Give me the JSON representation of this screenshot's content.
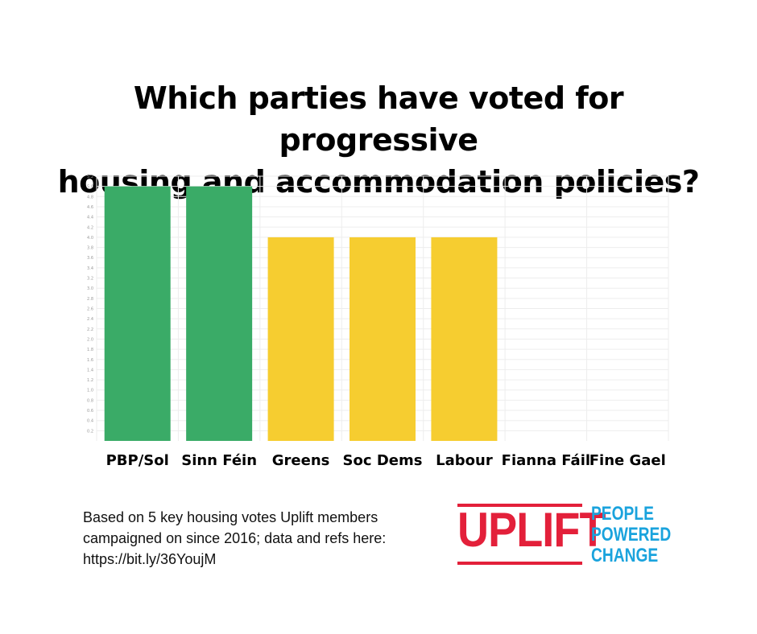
{
  "chart_data": {
    "type": "bar",
    "title_lines": [
      "Which parties have voted for progressive",
      "housing and accommodation policies?"
    ],
    "categories": [
      "PBP/Sol",
      "Sinn Féin",
      "Greens",
      "Soc Dems",
      "Labour",
      "Fianna Fáil",
      "Fine Gael"
    ],
    "values": [
      5,
      5,
      4,
      4,
      4,
      0,
      0
    ],
    "bar_colors": [
      "#3aab67",
      "#3aab67",
      "#f6cd30",
      "#f6cd30",
      "#f6cd30",
      "#f6cd30",
      "#f6cd30"
    ],
    "ylim": [
      0,
      5.2
    ],
    "yticks": [
      "0.2",
      "0.4",
      "0.6",
      "0.8",
      "1.0",
      "1.2",
      "1.4",
      "1.6",
      "1.8",
      "2.0",
      "2.2",
      "2.4",
      "2.6",
      "2.8",
      "3.0",
      "3.2",
      "3.4",
      "3.6",
      "3.8",
      "4.0",
      "4.2",
      "4.4",
      "4.6",
      "4.8",
      "5.0",
      "5.2"
    ],
    "grid": true,
    "xlabel": "",
    "ylabel": ""
  },
  "footnote_lines": [
    "Based on 5 key housing votes Uplift members",
    "campaigned on since 2016; data and refs here:",
    "https://bit.ly/36YoujM"
  ],
  "logo": {
    "wordmark": "UPLIFT",
    "tagline": [
      "PEOPLE",
      "POWERED",
      "CHANGE"
    ],
    "wordmark_color": "#e3203a",
    "tagline_color": "#1aa3dd"
  }
}
